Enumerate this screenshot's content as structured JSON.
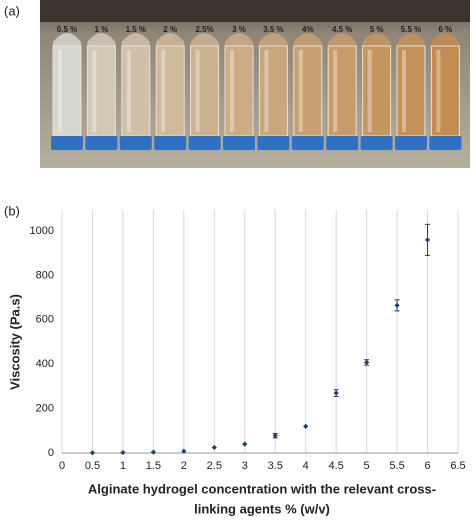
{
  "panel_a": {
    "label": "(a)",
    "tube_labels": [
      "0.5 %",
      "1 %",
      "1.5 %",
      "2 %",
      "2.5%",
      "3 %",
      "3.5 %",
      "4%",
      "4.5 %",
      "5 %",
      "5.5 %",
      "6 %"
    ]
  },
  "chart_data": {
    "type": "scatter",
    "panel_label": "(b)",
    "xlabel": [
      "Alginate hydrogel concentration with the relevant cross-",
      "linking agents % (w/v)"
    ],
    "ylabel": "Viscosity (Pa.s)",
    "x": [
      0.5,
      1,
      1.5,
      2,
      2.5,
      3,
      3.5,
      4,
      4.5,
      5,
      5.5,
      6
    ],
    "values": [
      1,
      2,
      4,
      8,
      25,
      40,
      78,
      120,
      270,
      408,
      665,
      960
    ],
    "errors": [
      0,
      0,
      0,
      0,
      0,
      0,
      10,
      0,
      15,
      12,
      25,
      70
    ],
    "color": "#1f3f7a",
    "xlim": [
      0,
      6.5
    ],
    "xticks": [
      0,
      0.5,
      1,
      1.5,
      2,
      2.5,
      3,
      3.5,
      4,
      4.5,
      5,
      5.5,
      6,
      6.5
    ],
    "ylim": [
      0,
      1000
    ],
    "yticks": [
      0,
      200,
      400,
      600,
      800,
      1000
    ],
    "grid": "x"
  }
}
